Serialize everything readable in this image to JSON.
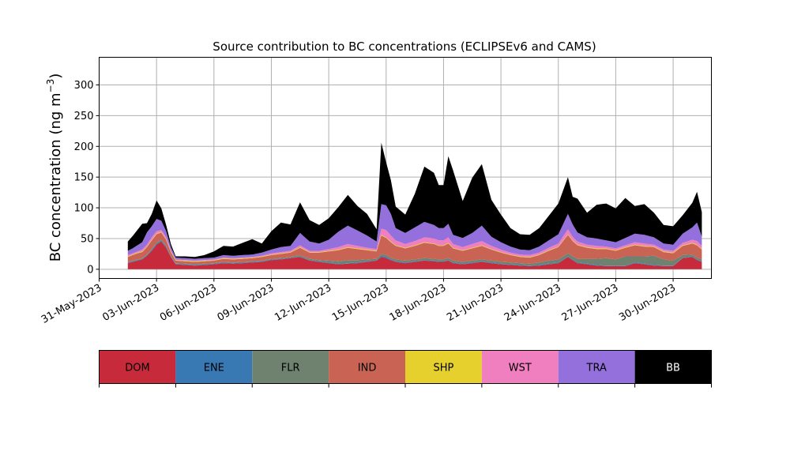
{
  "chart_data": {
    "type": "area",
    "stacked": true,
    "title": "Source contribution to BC concentrations (ECLIPSEv6 and CAMS)",
    "xlabel": "",
    "ylabel": "BC concentration (ng m",
    "ylabel_superscript": "−3",
    "ylabel_suffix": ")",
    "grid": true,
    "xlim": [
      "2023-05-31T00:00",
      "2023-07-02T00:00"
    ],
    "ylim": [
      -15,
      345
    ],
    "x_ticks": [
      "31-May-2023",
      "03-Jun-2023",
      "06-Jun-2023",
      "09-Jun-2023",
      "12-Jun-2023",
      "15-Jun-2023",
      "18-Jun-2023",
      "21-Jun-2023",
      "24-Jun-2023",
      "27-Jun-2023",
      "30-Jun-2023"
    ],
    "y_ticks": [
      0,
      50,
      100,
      150,
      200,
      250,
      300
    ],
    "legend_position": "bottom",
    "legend": [
      {
        "name": "DOM",
        "color": "#c72a3a",
        "text_color": "#000000"
      },
      {
        "name": "ENE",
        "color": "#3878b3",
        "text_color": "#000000"
      },
      {
        "name": "FLR",
        "color": "#6f8270",
        "text_color": "#000000"
      },
      {
        "name": "IND",
        "color": "#c96454",
        "text_color": "#000000"
      },
      {
        "name": "SHP",
        "color": "#e6d02e",
        "text_color": "#000000"
      },
      {
        "name": "WST",
        "color": "#f07fbf",
        "text_color": "#000000"
      },
      {
        "name": "TRA",
        "color": "#9370db",
        "text_color": "#000000"
      },
      {
        "name": "BB",
        "color": "#000000",
        "text_color": "#ffffff"
      }
    ],
    "series_order": [
      "DOM",
      "ENE",
      "FLR",
      "IND",
      "SHP",
      "WST",
      "TRA",
      "BB"
    ],
    "x": [
      "2023-06-01T12:00",
      "2023-06-01T18:00",
      "2023-06-02T00:00",
      "2023-06-02T06:00",
      "2023-06-02T12:00",
      "2023-06-02T18:00",
      "2023-06-03T00:00",
      "2023-06-03T06:00",
      "2023-06-03T12:00",
      "2023-06-03T18:00",
      "2023-06-04T00:00",
      "2023-06-04T12:00",
      "2023-06-05T00:00",
      "2023-06-05T12:00",
      "2023-06-06T00:00",
      "2023-06-06T12:00",
      "2023-06-07T00:00",
      "2023-06-07T12:00",
      "2023-06-08T00:00",
      "2023-06-08T12:00",
      "2023-06-09T00:00",
      "2023-06-09T12:00",
      "2023-06-10T00:00",
      "2023-06-10T12:00",
      "2023-06-11T00:00",
      "2023-06-11T12:00",
      "2023-06-12T00:00",
      "2023-06-12T12:00",
      "2023-06-13T00:00",
      "2023-06-13T12:00",
      "2023-06-14T00:00",
      "2023-06-14T12:00",
      "2023-06-14T18:00",
      "2023-06-15T00:00",
      "2023-06-15T06:00",
      "2023-06-15T12:00",
      "2023-06-16T00:00",
      "2023-06-16T12:00",
      "2023-06-17T00:00",
      "2023-06-17T12:00",
      "2023-06-17T18:00",
      "2023-06-18T00:00",
      "2023-06-18T06:00",
      "2023-06-18T12:00",
      "2023-06-19T00:00",
      "2023-06-19T12:00",
      "2023-06-20T00:00",
      "2023-06-20T12:00",
      "2023-06-21T00:00",
      "2023-06-21T12:00",
      "2023-06-22T00:00",
      "2023-06-22T12:00",
      "2023-06-23T00:00",
      "2023-06-23T12:00",
      "2023-06-24T00:00",
      "2023-06-24T12:00",
      "2023-06-24T18:00",
      "2023-06-25T00:00",
      "2023-06-25T12:00",
      "2023-06-26T00:00",
      "2023-06-26T12:00",
      "2023-06-27T00:00",
      "2023-06-27T12:00",
      "2023-06-28T00:00",
      "2023-06-28T12:00",
      "2023-06-29T00:00",
      "2023-06-29T12:00",
      "2023-06-30T00:00",
      "2023-06-30T12:00",
      "2023-07-01T00:00",
      "2023-07-01T06:00",
      "2023-07-01T12:00"
    ],
    "series": [
      {
        "name": "DOM",
        "values": [
          10,
          12,
          14,
          16,
          22,
          30,
          40,
          45,
          35,
          20,
          8,
          7,
          6,
          7,
          8,
          10,
          9,
          10,
          11,
          12,
          15,
          16,
          18,
          20,
          14,
          12,
          10,
          8,
          9,
          10,
          12,
          14,
          20,
          18,
          15,
          12,
          10,
          12,
          14,
          13,
          12,
          12,
          14,
          10,
          8,
          10,
          12,
          10,
          8,
          7,
          6,
          5,
          6,
          8,
          10,
          20,
          15,
          10,
          8,
          6,
          5,
          5,
          5,
          10,
          8,
          6,
          5,
          5,
          18,
          20,
          15,
          12
        ]
      },
      {
        "name": "ENE",
        "values": [
          1,
          1,
          1,
          1,
          1,
          2,
          2,
          2,
          2,
          1,
          1,
          1,
          1,
          1,
          1,
          1,
          1,
          1,
          1,
          1,
          1,
          1,
          1,
          1,
          1,
          1,
          1,
          1,
          1,
          1,
          1,
          1,
          2,
          2,
          1,
          1,
          1,
          1,
          1,
          1,
          1,
          1,
          1,
          1,
          1,
          1,
          1,
          1,
          1,
          1,
          1,
          1,
          1,
          1,
          1,
          1,
          1,
          1,
          1,
          1,
          1,
          1,
          1,
          1,
          1,
          1,
          1,
          1,
          1,
          1,
          1,
          1
        ]
      },
      {
        "name": "FLR",
        "values": [
          1,
          1,
          1,
          1,
          1,
          1,
          1,
          1,
          1,
          1,
          1,
          1,
          1,
          1,
          1,
          1,
          1,
          1,
          1,
          1,
          1,
          1,
          1,
          2,
          2,
          2,
          3,
          4,
          5,
          4,
          3,
          2,
          3,
          3,
          3,
          3,
          3,
          3,
          3,
          3,
          3,
          3,
          3,
          3,
          3,
          3,
          3,
          3,
          3,
          3,
          3,
          3,
          4,
          5,
          5,
          5,
          5,
          6,
          8,
          10,
          12,
          10,
          15,
          10,
          12,
          15,
          10,
          8,
          4,
          3,
          3,
          3
        ]
      },
      {
        "name": "IND",
        "values": [
          8,
          9,
          10,
          10,
          12,
          14,
          14,
          12,
          10,
          6,
          4,
          4,
          4,
          4,
          4,
          5,
          5,
          5,
          5,
          6,
          6,
          7,
          7,
          12,
          10,
          12,
          15,
          18,
          20,
          18,
          15,
          12,
          30,
          28,
          25,
          22,
          20,
          22,
          25,
          24,
          22,
          22,
          24,
          20,
          18,
          20,
          22,
          18,
          15,
          12,
          10,
          10,
          12,
          16,
          20,
          30,
          25,
          22,
          18,
          16,
          15,
          14,
          14,
          18,
          16,
          14,
          12,
          12,
          15,
          18,
          20,
          16
        ]
      },
      {
        "name": "SHP",
        "values": [
          1,
          1,
          1,
          1,
          1,
          1,
          1,
          1,
          1,
          1,
          1,
          1,
          1,
          1,
          1,
          1,
          1,
          1,
          1,
          1,
          1,
          1,
          1,
          1,
          1,
          1,
          1,
          1,
          1,
          1,
          1,
          1,
          1,
          1,
          1,
          1,
          1,
          1,
          1,
          1,
          1,
          1,
          1,
          1,
          1,
          1,
          1,
          1,
          1,
          1,
          1,
          1,
          1,
          1,
          1,
          1,
          1,
          1,
          1,
          1,
          1,
          1,
          1,
          1,
          1,
          1,
          1,
          1,
          1,
          1,
          1,
          1
        ]
      },
      {
        "name": "WST",
        "values": [
          2,
          2,
          2,
          3,
          3,
          4,
          4,
          3,
          3,
          2,
          1,
          1,
          1,
          1,
          1,
          1,
          1,
          1,
          1,
          1,
          2,
          2,
          2,
          3,
          2,
          2,
          3,
          4,
          5,
          4,
          3,
          3,
          10,
          12,
          10,
          8,
          6,
          7,
          8,
          8,
          8,
          8,
          9,
          6,
          5,
          6,
          7,
          5,
          4,
          3,
          3,
          3,
          3,
          4,
          5,
          8,
          6,
          5,
          4,
          4,
          3,
          3,
          3,
          4,
          4,
          3,
          3,
          3,
          4,
          5,
          6,
          5
        ]
      },
      {
        "name": "TRA",
        "values": [
          7,
          8,
          10,
          12,
          20,
          18,
          20,
          15,
          10,
          5,
          3,
          3,
          3,
          3,
          3,
          4,
          4,
          4,
          4,
          5,
          6,
          8,
          8,
          20,
          15,
          12,
          15,
          25,
          30,
          25,
          20,
          12,
          40,
          40,
          35,
          20,
          18,
          22,
          25,
          22,
          20,
          20,
          22,
          15,
          15,
          18,
          25,
          15,
          12,
          10,
          8,
          8,
          10,
          12,
          15,
          25,
          20,
          15,
          12,
          12,
          10,
          10,
          12,
          14,
          14,
          12,
          10,
          10,
          15,
          20,
          30,
          15
        ]
      },
      {
        "name": "BB",
        "values": [
          15,
          20,
          25,
          30,
          15,
          20,
          30,
          20,
          10,
          5,
          2,
          3,
          3,
          5,
          10,
          15,
          15,
          20,
          25,
          15,
          30,
          40,
          35,
          50,
          35,
          30,
          35,
          40,
          50,
          40,
          35,
          20,
          100,
          70,
          55,
          35,
          30,
          55,
          90,
          85,
          70,
          70,
          110,
          105,
          60,
          90,
          100,
          60,
          45,
          30,
          25,
          25,
          30,
          40,
          50,
          60,
          45,
          55,
          40,
          55,
          60,
          55,
          65,
          45,
          50,
          40,
          30,
          30,
          30,
          40,
          50,
          40
        ]
      }
    ]
  }
}
